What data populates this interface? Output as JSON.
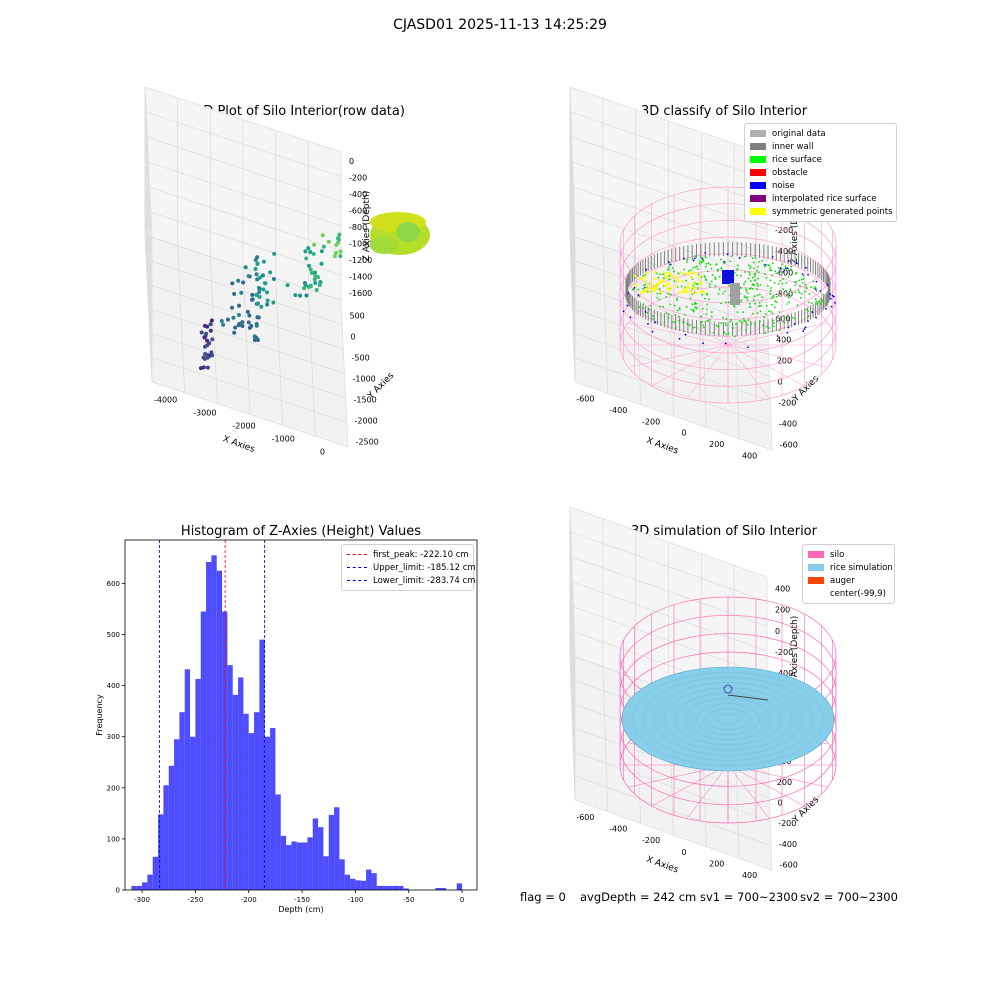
{
  "suptitle": "CJASD01 2025-11-13 14:25:29",
  "footer": {
    "flag": "flag = 0",
    "avg": "avgDepth = 242 cm",
    "sv1": "sv1 = 700~2300",
    "sv2": "sv2 = 700~2300"
  },
  "colors": {
    "hist_bar": "#4d4dff",
    "peak_line": "#ff0000",
    "limit_line": "#0000cc",
    "silo": "#ff69b4",
    "rice_sim": "#87ceeb",
    "auger": "#ff4500",
    "rice_surface": "#00ff00",
    "inner_wall": "#808080",
    "noise": "#0000ff"
  },
  "chart_data": [
    {
      "type": "scatter",
      "title": "3D Plot of Silo Interior(row data)",
      "xlabel": "X Axies",
      "ylabel": "Y Axies",
      "zlabel": "Z Axies (Depth)",
      "x_ticks": [
        "-4000",
        "-3000",
        "-2000",
        "-1000",
        "0"
      ],
      "y_ticks": [
        "500",
        "0",
        "-500",
        "-1000",
        "-1500",
        "-2000",
        "-2500"
      ],
      "z_ticks": [
        "0",
        "-200",
        "-400",
        "-600",
        "-800",
        "-1000",
        "-1200",
        "-1400",
        "-1600"
      ],
      "xlim": [
        -4300,
        300
      ],
      "ylim": [
        -2700,
        600
      ],
      "zlim": [
        -1700,
        100
      ],
      "grid": true
    },
    {
      "type": "scatter",
      "title": "3D classify of Silo Interior",
      "xlabel": "X Axies",
      "ylabel": "Y Axies",
      "zlabel": "Z Axies (Depth)",
      "x_ticks": [
        "-600",
        "-400",
        "-200",
        "0",
        "200",
        "400"
      ],
      "y_ticks": [
        "600",
        "400",
        "200",
        "0",
        "-200",
        "-400",
        "-600"
      ],
      "z_ticks": [
        "400",
        "200",
        "0",
        "-200",
        "-400",
        "-600",
        "-800"
      ],
      "legend": [
        {
          "label": "original data",
          "color": "#b0b0b0"
        },
        {
          "label": "inner wall",
          "color": "#808080"
        },
        {
          "label": "rice surface",
          "color": "#00ff00"
        },
        {
          "label": "obstacle",
          "color": "#ff0000"
        },
        {
          "label": "noise",
          "color": "#0000ff"
        },
        {
          "label": "interpolated rice surface",
          "color": "#800080"
        },
        {
          "label": "symmetric generated points",
          "color": "#ffff00"
        }
      ],
      "legend_position": "upper right",
      "grid": true
    },
    {
      "type": "bar",
      "title": "Histogram of Z-Axies (Height) Values",
      "xlabel": "Depth (cm)",
      "ylabel": "Frequency",
      "xlim": [
        -316,
        14
      ],
      "ylim": [
        0,
        685
      ],
      "x_ticks": [
        -300,
        -250,
        -200,
        -150,
        -100,
        -50,
        0
      ],
      "y_ticks": [
        0,
        100,
        200,
        300,
        400,
        500,
        600
      ],
      "bins": [
        [
          -310,
          -305,
          8
        ],
        [
          -305,
          -300,
          8
        ],
        [
          -300,
          -295,
          15
        ],
        [
          -295,
          -290,
          30
        ],
        [
          -290,
          -285,
          65
        ],
        [
          -285,
          -280,
          148
        ],
        [
          -280,
          -275,
          205
        ],
        [
          -275,
          -270,
          243
        ],
        [
          -270,
          -265,
          295
        ],
        [
          -265,
          -260,
          348
        ],
        [
          -260,
          -255,
          432
        ],
        [
          -255,
          -250,
          300
        ],
        [
          -250,
          -245,
          413
        ],
        [
          -245,
          -240,
          545
        ],
        [
          -240,
          -235,
          642
        ],
        [
          -235,
          -230,
          655
        ],
        [
          -230,
          -225,
          625
        ],
        [
          -225,
          -220,
          545
        ],
        [
          -220,
          -215,
          440
        ],
        [
          -215,
          -210,
          382
        ],
        [
          -210,
          -205,
          416
        ],
        [
          -205,
          -200,
          345
        ],
        [
          -200,
          -195,
          307
        ],
        [
          -195,
          -190,
          348
        ],
        [
          -190,
          -185,
          490
        ],
        [
          -185,
          -180,
          300
        ],
        [
          -180,
          -175,
          317
        ],
        [
          -175,
          -170,
          187
        ],
        [
          -170,
          -165,
          106
        ],
        [
          -165,
          -160,
          88
        ],
        [
          -160,
          -155,
          95
        ],
        [
          -155,
          -150,
          93
        ],
        [
          -150,
          -145,
          93
        ],
        [
          -145,
          -140,
          103
        ],
        [
          -140,
          -135,
          140
        ],
        [
          -135,
          -130,
          123
        ],
        [
          -130,
          -125,
          66
        ],
        [
          -125,
          -120,
          147
        ],
        [
          -120,
          -115,
          162
        ],
        [
          -115,
          -110,
          60
        ],
        [
          -110,
          -105,
          30
        ],
        [
          -105,
          -100,
          22
        ],
        [
          -100,
          -95,
          19
        ],
        [
          -95,
          -90,
          18
        ],
        [
          -90,
          -85,
          40
        ],
        [
          -85,
          -80,
          33
        ],
        [
          -80,
          -75,
          8
        ],
        [
          -75,
          -70,
          8
        ],
        [
          -70,
          -65,
          8
        ],
        [
          -65,
          -60,
          8
        ],
        [
          -60,
          -55,
          8
        ],
        [
          -55,
          -50,
          3
        ],
        [
          -50,
          -45,
          0
        ],
        [
          -45,
          -40,
          0
        ],
        [
          -40,
          -35,
          0
        ],
        [
          -35,
          -30,
          0
        ],
        [
          -30,
          -25,
          0
        ],
        [
          -25,
          -20,
          0
        ],
        [
          -20,
          -15,
          0
        ],
        [
          -15,
          -10,
          0
        ],
        [
          -10,
          -5,
          0
        ],
        [
          -5,
          0,
          0
        ],
        [
          0,
          5,
          0
        ]
      ],
      "vlines": [
        {
          "label": "first_peak: -222.10 cm",
          "x": -222.1,
          "color": "#ff0000"
        },
        {
          "label": "Upper_limit: -185.12 cm",
          "x": -185.12,
          "color": "#0000cc"
        },
        {
          "label": "Lower_limit: -283.74 cm",
          "x": -283.74,
          "color": "#0000cc"
        }
      ],
      "legend_position": "upper right",
      "grid": false
    },
    {
      "type": "scatter",
      "title": "3D simulation of Silo Interior",
      "xlabel": "X Axies",
      "ylabel": "Y Axies",
      "zlabel": "Z Axies (Depth)",
      "x_ticks": [
        "-600",
        "-400",
        "-200",
        "0",
        "200",
        "400"
      ],
      "y_ticks": [
        "600",
        "400",
        "200",
        "0",
        "-200",
        "-400",
        "-600"
      ],
      "z_ticks": [
        "400",
        "200",
        "0",
        "-200",
        "-400",
        "-600",
        "-800"
      ],
      "legend": [
        {
          "label": "silo",
          "color": "#ff69b4"
        },
        {
          "label": "rice simulation",
          "color": "#87ceeb"
        },
        {
          "label": "auger",
          "color": "#ff4500"
        },
        {
          "label": "center(-99,9)",
          "color": ""
        }
      ],
      "legend_position": "upper right",
      "grid": true
    }
  ]
}
